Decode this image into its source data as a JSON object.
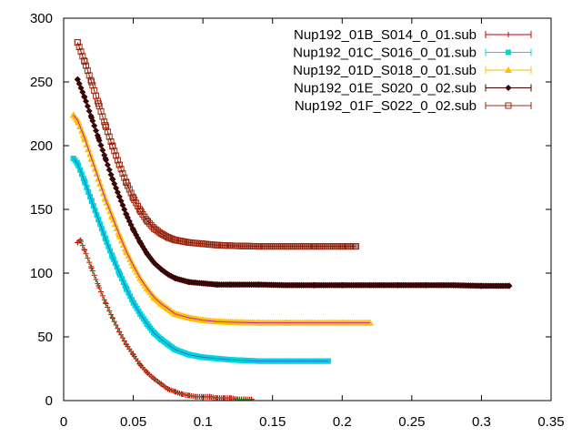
{
  "chart_data": {
    "type": "scatter",
    "title": "",
    "xlabel": "",
    "ylabel": "",
    "xlim": [
      0,
      0.35
    ],
    "ylim": [
      0,
      300
    ],
    "xticks": [
      0,
      0.05,
      0.1,
      0.15,
      0.2,
      0.25,
      0.3,
      0.35
    ],
    "xtick_labels": [
      "0",
      "0.05",
      "0.1",
      "0.15",
      "0.2",
      "0.25",
      "0.3",
      "0.35"
    ],
    "yticks": [
      0,
      50,
      100,
      150,
      200,
      250,
      300
    ],
    "ytick_labels": [
      "0",
      "50",
      "100",
      "150",
      "200",
      "250",
      "300"
    ],
    "grid": false,
    "legend_position": "top-right",
    "series": [
      {
        "name": "Nup192_01B_S014_0_01.sub",
        "color": "#cc0000",
        "marker": "plus",
        "x": [
          0.01,
          0.012,
          0.015,
          0.02,
          0.025,
          0.03,
          0.035,
          0.04,
          0.045,
          0.05,
          0.055,
          0.06,
          0.065,
          0.07,
          0.075,
          0.08,
          0.085,
          0.09,
          0.095,
          0.1,
          0.105,
          0.11,
          0.115,
          0.12,
          0.125,
          0.13,
          0.135
        ],
        "y": [
          124,
          126,
          118,
          104,
          90,
          77,
          65,
          54,
          44,
          36,
          28,
          22,
          17,
          13,
          9,
          7,
          5,
          4,
          3,
          3,
          3,
          2,
          2,
          2,
          1,
          1,
          1
        ]
      },
      {
        "name": "Nup192_01C_S016_0_01.sub",
        "color": "#00d8d8",
        "marker": "square",
        "x": [
          0.007,
          0.01,
          0.015,
          0.02,
          0.025,
          0.03,
          0.035,
          0.04,
          0.045,
          0.05,
          0.055,
          0.06,
          0.065,
          0.07,
          0.075,
          0.08,
          0.09,
          0.1,
          0.11,
          0.12,
          0.13,
          0.14,
          0.15,
          0.16,
          0.17,
          0.18,
          0.19
        ],
        "y": [
          190,
          186,
          172,
          157,
          142,
          127,
          113,
          100,
          88,
          77,
          68,
          60,
          53,
          48,
          44,
          40,
          36,
          34,
          33,
          32,
          31.5,
          31,
          31,
          31,
          31,
          31,
          31
        ]
      },
      {
        "name": "Nup192_01D_S018_0_01.sub",
        "color": "#ffc000",
        "marker": "triangle",
        "x": [
          0.007,
          0.01,
          0.015,
          0.02,
          0.025,
          0.03,
          0.035,
          0.04,
          0.045,
          0.05,
          0.055,
          0.06,
          0.065,
          0.07,
          0.075,
          0.08,
          0.09,
          0.1,
          0.11,
          0.12,
          0.14,
          0.16,
          0.18,
          0.2,
          0.22
        ],
        "y": [
          224,
          220,
          206,
          190,
          174,
          158,
          144,
          130,
          117,
          106,
          96,
          88,
          81,
          76,
          72,
          68,
          65,
          63,
          62,
          61.5,
          61,
          61,
          61,
          61,
          61
        ]
      },
      {
        "name": "Nup192_01E_S020_0_02.sub",
        "color": "#400000",
        "marker": "diamond",
        "x": [
          0.01,
          0.015,
          0.02,
          0.025,
          0.03,
          0.035,
          0.04,
          0.045,
          0.05,
          0.055,
          0.06,
          0.065,
          0.07,
          0.075,
          0.08,
          0.09,
          0.1,
          0.11,
          0.12,
          0.14,
          0.16,
          0.18,
          0.2,
          0.22,
          0.24,
          0.26,
          0.28,
          0.3,
          0.32
        ],
        "y": [
          252,
          238,
          222,
          206,
          190,
          174,
          160,
          146,
          134,
          124,
          115,
          108,
          103,
          99,
          96,
          93,
          92,
          91,
          91,
          91,
          90.5,
          90.5,
          90.5,
          90.5,
          90.5,
          90.5,
          90.5,
          90,
          90
        ]
      },
      {
        "name": "Nup192_01F_S022_0_02.sub",
        "color": "#a02810",
        "marker": "open-square",
        "x": [
          0.01,
          0.015,
          0.02,
          0.025,
          0.03,
          0.035,
          0.04,
          0.045,
          0.05,
          0.055,
          0.06,
          0.065,
          0.07,
          0.075,
          0.08,
          0.09,
          0.1,
          0.11,
          0.12,
          0.14,
          0.16,
          0.18,
          0.2,
          0.21
        ],
        "y": [
          281,
          266,
          250,
          233,
          216,
          200,
          185,
          171,
          159,
          149,
          141,
          135,
          131,
          128,
          126,
          124,
          123,
          122,
          121.5,
          121,
          121,
          121,
          121,
          121
        ]
      }
    ]
  }
}
